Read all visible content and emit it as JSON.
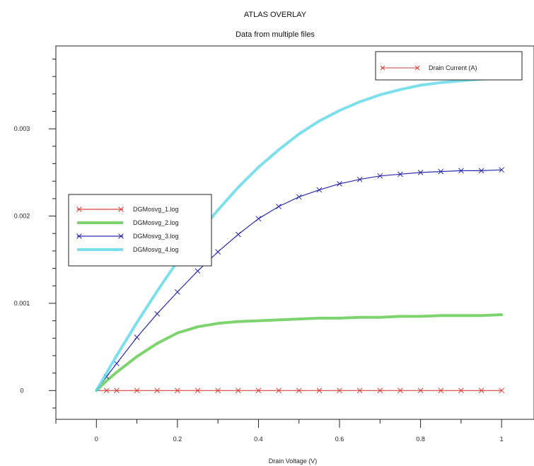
{
  "chart_data": {
    "type": "line",
    "title": "ATLAS OVERLAY",
    "subtitle": "Data from multiple files",
    "xlabel": "Drain Voltage (V)",
    "ylabel": "",
    "xlim": [
      -0.1,
      1.08
    ],
    "ylim": [
      -0.00033,
      0.00395
    ],
    "x_ticks": [
      0,
      0.2,
      0.4,
      0.6,
      0.8,
      1
    ],
    "x_tick_labels": [
      "0",
      "0.2",
      "0.4",
      "0.6",
      "0.8",
      "1"
    ],
    "y_ticks": [
      0,
      0.001,
      0.002,
      0.003
    ],
    "y_tick_labels": [
      "0",
      "0.001",
      "0.002",
      "0.003"
    ],
    "grid": false,
    "legend_top_right": "Drain Current (A)",
    "legend_left": "middle-left",
    "series": [
      {
        "name": "DGMosvg_1.log",
        "color": "#d9413b",
        "marker": "x",
        "x": [
          0,
          0.025,
          0.05,
          0.1,
          0.15,
          0.2,
          0.25,
          0.3,
          0.35,
          0.4,
          0.45,
          0.5,
          0.55,
          0.6,
          0.65,
          0.7,
          0.75,
          0.8,
          0.85,
          0.9,
          0.95,
          1.0
        ],
        "y": [
          0,
          0,
          0,
          0,
          0,
          0,
          0,
          0,
          0,
          0,
          0,
          0,
          0,
          0,
          0,
          0,
          0,
          0,
          0,
          0,
          0,
          0
        ]
      },
      {
        "name": "DGMosvg_2.log",
        "color": "#66cc55",
        "marker": "none",
        "x": [
          0,
          0.025,
          0.05,
          0.1,
          0.15,
          0.2,
          0.25,
          0.3,
          0.35,
          0.4,
          0.45,
          0.5,
          0.55,
          0.6,
          0.65,
          0.7,
          0.75,
          0.8,
          0.85,
          0.9,
          0.95,
          1.0
        ],
        "y": [
          0,
          0.00011,
          0.00021,
          0.00039,
          0.00054,
          0.00066,
          0.00073,
          0.00077,
          0.00079,
          0.0008,
          0.00081,
          0.00082,
          0.00083,
          0.00083,
          0.00084,
          0.00084,
          0.00085,
          0.00085,
          0.00086,
          0.00086,
          0.00086,
          0.00087
        ]
      },
      {
        "name": "DGMosvg_3.log",
        "color": "#2a2aa8",
        "marker": "x",
        "x": [
          0,
          0.025,
          0.05,
          0.1,
          0.15,
          0.2,
          0.25,
          0.3,
          0.35,
          0.4,
          0.45,
          0.5,
          0.55,
          0.6,
          0.65,
          0.7,
          0.75,
          0.8,
          0.85,
          0.9,
          0.95,
          1.0
        ],
        "y": [
          0,
          0.00016,
          0.00031,
          0.00061,
          0.00088,
          0.00113,
          0.00137,
          0.00159,
          0.00179,
          0.00197,
          0.00211,
          0.00222,
          0.0023,
          0.00237,
          0.00242,
          0.00246,
          0.00248,
          0.0025,
          0.00251,
          0.00252,
          0.00252,
          0.00253
        ]
      },
      {
        "name": "DGMosvg_4.log",
        "color": "#66d9e8",
        "marker": "none",
        "x": [
          0,
          0.025,
          0.05,
          0.1,
          0.15,
          0.2,
          0.25,
          0.3,
          0.35,
          0.4,
          0.45,
          0.5,
          0.55,
          0.6,
          0.65,
          0.7,
          0.75,
          0.8,
          0.85,
          0.9,
          0.95,
          1.0
        ],
        "y": [
          0,
          0.0002,
          0.0004,
          0.00078,
          0.00114,
          0.00148,
          0.00179,
          0.00207,
          0.00233,
          0.00256,
          0.00276,
          0.00294,
          0.00309,
          0.00321,
          0.00331,
          0.00339,
          0.00345,
          0.0035,
          0.00353,
          0.00355,
          0.00357,
          0.00358
        ]
      }
    ]
  }
}
